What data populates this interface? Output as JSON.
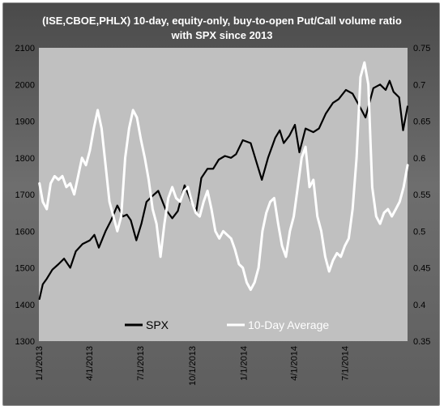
{
  "chart_data": {
    "type": "line",
    "title_lines": [
      "(ISE,CBOE,PHLX) 10-day, equity-only, buy-to-open Put/Call volume ratio",
      "with SPX since 2013"
    ],
    "x_tick_labels": [
      "1/1/2013",
      "4/1/2013",
      "7/1/2013",
      "10/1/2013",
      "1/1/2014",
      "4/1/2014",
      "7/1/2014"
    ],
    "x_tick_dates": [
      "2013-01-01",
      "2013-04-01",
      "2013-07-01",
      "2013-10-01",
      "2014-01-01",
      "2014-04-01",
      "2014-07-01"
    ],
    "x_range": [
      "2013-01-01",
      "2014-10-21"
    ],
    "y_left": {
      "min": 1300,
      "max": 2100,
      "step": 100,
      "ticks": [
        1300,
        1400,
        1500,
        1600,
        1700,
        1800,
        1900,
        2000,
        2100
      ]
    },
    "y_right": {
      "min": 0.35,
      "max": 0.75,
      "step": 0.05,
      "ticks": [
        "0.35",
        "0.4",
        "0.45",
        "0.5",
        "0.55",
        "0.6",
        "0.65",
        "0.7",
        "0.75"
      ]
    },
    "grid": false,
    "legend_position": "bottom",
    "series": [
      {
        "name": "SPX",
        "axis": "left",
        "color": "#000000",
        "points": [
          [
            "2013-01-02",
            1415
          ],
          [
            "2013-01-08",
            1455
          ],
          [
            "2013-01-15",
            1470
          ],
          [
            "2013-01-25",
            1495
          ],
          [
            "2013-02-05",
            1510
          ],
          [
            "2013-02-15",
            1525
          ],
          [
            "2013-02-26",
            1500
          ],
          [
            "2013-03-08",
            1545
          ],
          [
            "2013-03-20",
            1565
          ],
          [
            "2013-04-02",
            1575
          ],
          [
            "2013-04-10",
            1590
          ],
          [
            "2013-04-18",
            1555
          ],
          [
            "2013-04-30",
            1600
          ],
          [
            "2013-05-10",
            1630
          ],
          [
            "2013-05-21",
            1670
          ],
          [
            "2013-05-31",
            1640
          ],
          [
            "2013-06-07",
            1645
          ],
          [
            "2013-06-14",
            1630
          ],
          [
            "2013-06-24",
            1575
          ],
          [
            "2013-07-03",
            1620
          ],
          [
            "2013-07-12",
            1680
          ],
          [
            "2013-07-22",
            1695
          ],
          [
            "2013-08-02",
            1710
          ],
          [
            "2013-08-15",
            1660
          ],
          [
            "2013-08-27",
            1635
          ],
          [
            "2013-09-06",
            1655
          ],
          [
            "2013-09-18",
            1725
          ],
          [
            "2013-09-30",
            1680
          ],
          [
            "2013-10-09",
            1655
          ],
          [
            "2013-10-18",
            1745
          ],
          [
            "2013-10-29",
            1770
          ],
          [
            "2013-11-08",
            1770
          ],
          [
            "2013-11-18",
            1795
          ],
          [
            "2013-11-29",
            1805
          ],
          [
            "2013-12-10",
            1800
          ],
          [
            "2013-12-19",
            1810
          ],
          [
            "2013-12-31",
            1848
          ],
          [
            "2014-01-14",
            1840
          ],
          [
            "2014-01-24",
            1790
          ],
          [
            "2014-02-03",
            1740
          ],
          [
            "2014-02-14",
            1800
          ],
          [
            "2014-02-27",
            1855
          ],
          [
            "2014-03-07",
            1875
          ],
          [
            "2014-03-14",
            1840
          ],
          [
            "2014-03-24",
            1860
          ],
          [
            "2014-04-03",
            1890
          ],
          [
            "2014-04-11",
            1815
          ],
          [
            "2014-04-22",
            1880
          ],
          [
            "2014-05-06",
            1870
          ],
          [
            "2014-05-16",
            1880
          ],
          [
            "2014-05-28",
            1920
          ],
          [
            "2014-06-10",
            1950
          ],
          [
            "2014-06-20",
            1960
          ],
          [
            "2014-07-03",
            1985
          ],
          [
            "2014-07-15",
            1975
          ],
          [
            "2014-07-31",
            1930
          ],
          [
            "2014-08-07",
            1910
          ],
          [
            "2014-08-21",
            1990
          ],
          [
            "2014-09-02",
            2000
          ],
          [
            "2014-09-12",
            1985
          ],
          [
            "2014-09-19",
            2010
          ],
          [
            "2014-09-26",
            1980
          ],
          [
            "2014-10-06",
            1965
          ],
          [
            "2014-10-13",
            1875
          ],
          [
            "2014-10-21",
            1940
          ]
        ]
      },
      {
        "name": "10-Day Average",
        "axis": "right",
        "color": "#ffffff",
        "points": [
          [
            "2013-01-02",
            0.565
          ],
          [
            "2013-01-08",
            0.54
          ],
          [
            "2013-01-15",
            0.53
          ],
          [
            "2013-01-22",
            0.565
          ],
          [
            "2013-01-29",
            0.575
          ],
          [
            "2013-02-05",
            0.57
          ],
          [
            "2013-02-12",
            0.575
          ],
          [
            "2013-02-19",
            0.56
          ],
          [
            "2013-02-26",
            0.565
          ],
          [
            "2013-03-05",
            0.55
          ],
          [
            "2013-03-12",
            0.575
          ],
          [
            "2013-03-19",
            0.6
          ],
          [
            "2013-03-26",
            0.59
          ],
          [
            "2013-04-02",
            0.61
          ],
          [
            "2013-04-09",
            0.64
          ],
          [
            "2013-04-16",
            0.665
          ],
          [
            "2013-04-23",
            0.64
          ],
          [
            "2013-04-30",
            0.59
          ],
          [
            "2013-05-07",
            0.54
          ],
          [
            "2013-05-14",
            0.52
          ],
          [
            "2013-05-21",
            0.5
          ],
          [
            "2013-05-28",
            0.52
          ],
          [
            "2013-06-04",
            0.6
          ],
          [
            "2013-06-11",
            0.64
          ],
          [
            "2013-06-18",
            0.665
          ],
          [
            "2013-06-25",
            0.655
          ],
          [
            "2013-07-02",
            0.625
          ],
          [
            "2013-07-09",
            0.6
          ],
          [
            "2013-07-16",
            0.57
          ],
          [
            "2013-07-23",
            0.53
          ],
          [
            "2013-07-30",
            0.51
          ],
          [
            "2013-08-06",
            0.465
          ],
          [
            "2013-08-13",
            0.51
          ],
          [
            "2013-08-20",
            0.545
          ],
          [
            "2013-08-27",
            0.56
          ],
          [
            "2013-09-03",
            0.545
          ],
          [
            "2013-09-10",
            0.54
          ],
          [
            "2013-09-17",
            0.555
          ],
          [
            "2013-09-24",
            0.56
          ],
          [
            "2013-10-01",
            0.54
          ],
          [
            "2013-10-08",
            0.525
          ],
          [
            "2013-10-15",
            0.52
          ],
          [
            "2013-10-22",
            0.54
          ],
          [
            "2013-10-29",
            0.555
          ],
          [
            "2013-11-05",
            0.53
          ],
          [
            "2013-11-12",
            0.5
          ],
          [
            "2013-11-19",
            0.49
          ],
          [
            "2013-11-26",
            0.5
          ],
          [
            "2013-12-03",
            0.495
          ],
          [
            "2013-12-10",
            0.49
          ],
          [
            "2013-12-17",
            0.475
          ],
          [
            "2013-12-24",
            0.455
          ],
          [
            "2013-12-31",
            0.45
          ],
          [
            "2014-01-07",
            0.43
          ],
          [
            "2014-01-14",
            0.42
          ],
          [
            "2014-01-21",
            0.43
          ],
          [
            "2014-01-28",
            0.45
          ],
          [
            "2014-02-04",
            0.5
          ],
          [
            "2014-02-11",
            0.525
          ],
          [
            "2014-02-18",
            0.54
          ],
          [
            "2014-02-25",
            0.545
          ],
          [
            "2014-03-04",
            0.51
          ],
          [
            "2014-03-11",
            0.48
          ],
          [
            "2014-03-18",
            0.465
          ],
          [
            "2014-03-25",
            0.5
          ],
          [
            "2014-04-01",
            0.52
          ],
          [
            "2014-04-08",
            0.56
          ],
          [
            "2014-04-15",
            0.6
          ],
          [
            "2014-04-22",
            0.615
          ],
          [
            "2014-04-29",
            0.56
          ],
          [
            "2014-05-06",
            0.57
          ],
          [
            "2014-05-13",
            0.52
          ],
          [
            "2014-05-20",
            0.5
          ],
          [
            "2014-05-27",
            0.465
          ],
          [
            "2014-06-03",
            0.445
          ],
          [
            "2014-06-10",
            0.46
          ],
          [
            "2014-06-17",
            0.47
          ],
          [
            "2014-06-24",
            0.465
          ],
          [
            "2014-07-01",
            0.48
          ],
          [
            "2014-07-08",
            0.49
          ],
          [
            "2014-07-15",
            0.53
          ],
          [
            "2014-07-22",
            0.6
          ],
          [
            "2014-07-29",
            0.71
          ],
          [
            "2014-08-05",
            0.73
          ],
          [
            "2014-08-12",
            0.7
          ],
          [
            "2014-08-19",
            0.56
          ],
          [
            "2014-08-26",
            0.52
          ],
          [
            "2014-09-02",
            0.51
          ],
          [
            "2014-09-09",
            0.525
          ],
          [
            "2014-09-16",
            0.53
          ],
          [
            "2014-09-23",
            0.52
          ],
          [
            "2014-09-30",
            0.53
          ],
          [
            "2014-10-07",
            0.54
          ],
          [
            "2014-10-14",
            0.56
          ],
          [
            "2014-10-21",
            0.59
          ]
        ]
      }
    ]
  },
  "legend": [
    {
      "label": "SPX",
      "color": "#000000"
    },
    {
      "label": "10-Day Average",
      "color": "#ffffff"
    }
  ]
}
